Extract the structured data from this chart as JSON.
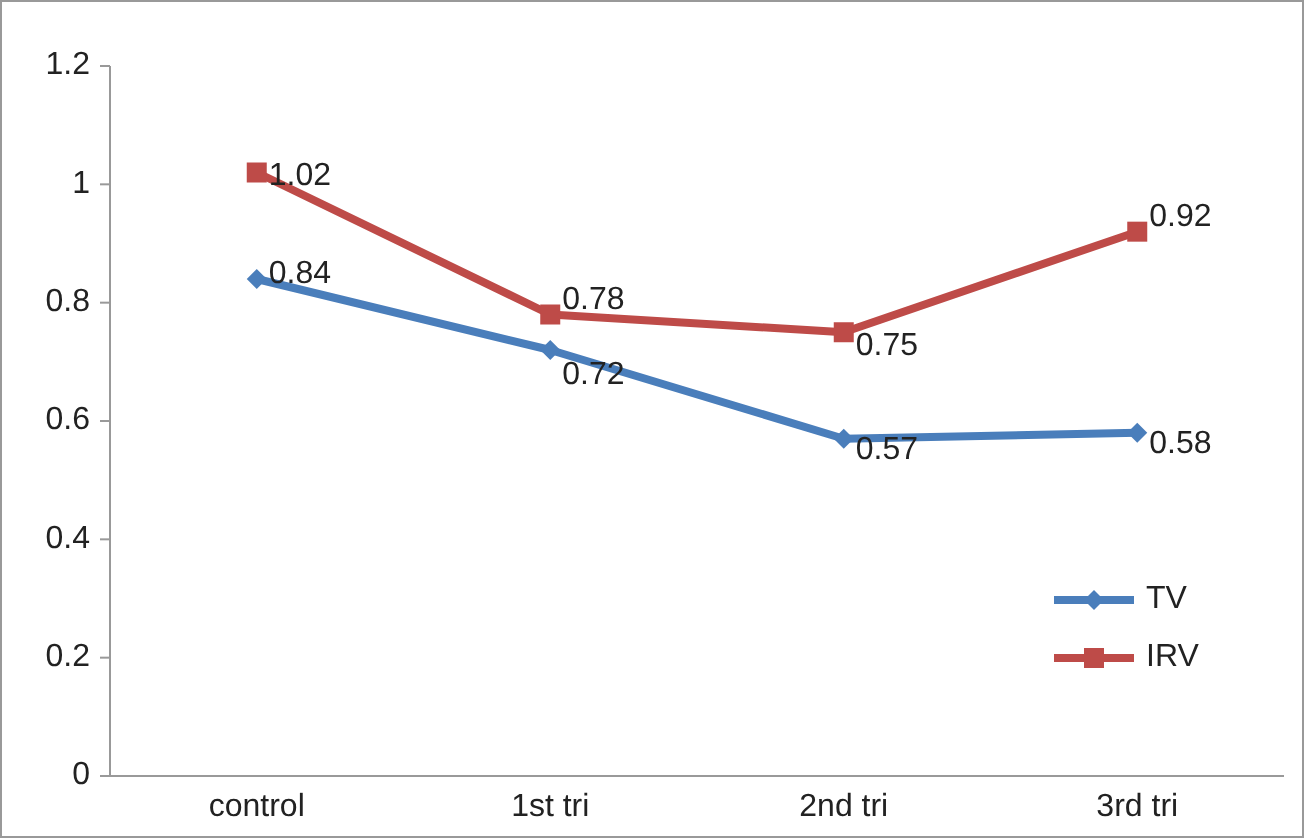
{
  "chart_data": {
    "type": "line",
    "categories": [
      "control",
      "1st tri",
      "2nd tri",
      "3rd tri"
    ],
    "series": [
      {
        "name": "TV",
        "color": "#4a7ebb",
        "values": [
          0.84,
          0.72,
          0.57,
          0.58
        ],
        "marker": "diamond"
      },
      {
        "name": "IRV",
        "color": "#be4b48",
        "values": [
          1.02,
          0.78,
          0.75,
          0.92
        ],
        "marker": "square"
      }
    ],
    "ylim": [
      0,
      1.2
    ],
    "yticks": [
      0,
      0.2,
      0.4,
      0.6,
      0.8,
      1,
      1.2
    ],
    "data_labels": true,
    "legend": "bottom right",
    "grid": false
  }
}
